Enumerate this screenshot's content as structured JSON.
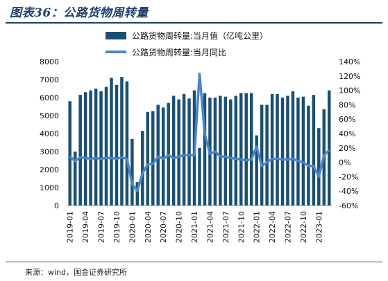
{
  "figure": {
    "title": "图表36：公路货物周转量",
    "source": "来源：wind，国金证券研究所"
  },
  "colors": {
    "bar": "#1b4f72",
    "line": "#4a86c8",
    "title": "#1f3f6b"
  },
  "chart_data": {
    "type": "bar",
    "categories": [
      "2019-01",
      "2019-02",
      "2019-03",
      "2019-04",
      "2019-05",
      "2019-06",
      "2019-07",
      "2019-08",
      "2019-09",
      "2019-10",
      "2019-11",
      "2019-12",
      "2020-01",
      "2020-02",
      "2020-03",
      "2020-04",
      "2020-05",
      "2020-06",
      "2020-07",
      "2020-08",
      "2020-09",
      "2020-10",
      "2020-11",
      "2020-12",
      "2021-01",
      "2021-02",
      "2021-03",
      "2021-04",
      "2021-05",
      "2021-06",
      "2021-07",
      "2021-08",
      "2021-09",
      "2021-10",
      "2021-11",
      "2021-12",
      "2022-01",
      "2022-02",
      "2022-03",
      "2022-04",
      "2022-05",
      "2022-06",
      "2022-07",
      "2022-08",
      "2022-09",
      "2022-10",
      "2022-11",
      "2022-12",
      "2023-01",
      "2023-02",
      "2023-03"
    ],
    "tick_labels": [
      "2019-01",
      "2019-04",
      "2019-07",
      "2019-10",
      "2020-01",
      "2020-04",
      "2020-07",
      "2020-10",
      "2021-01",
      "2021-04",
      "2021-07",
      "2021-10",
      "2022-01",
      "2022-04",
      "2022-07",
      "2022-10",
      "2023-01"
    ],
    "series": [
      {
        "name": "公路货物周转量:当月值（亿吨公里）",
        "type": "bar",
        "axis": "left",
        "values": [
          5800,
          3000,
          6150,
          6300,
          6400,
          6500,
          6350,
          6600,
          7100,
          6700,
          7150,
          6900,
          3700,
          1300,
          4150,
          5200,
          5250,
          5600,
          5450,
          5700,
          6100,
          5900,
          6200,
          5950,
          6400,
          3200,
          6250,
          6000,
          6000,
          6100,
          6050,
          5900,
          6100,
          6250,
          6250,
          6250,
          3900,
          5600,
          5600,
          6200,
          6200,
          6000,
          6100,
          6350,
          6000,
          6050,
          5550,
          6150,
          4300,
          5350,
          6400
        ]
      },
      {
        "name": "公路货物周转量:当月同比",
        "type": "line",
        "axis": "right",
        "values": [
          8,
          2,
          7,
          6,
          5,
          6,
          5,
          6,
          6,
          5,
          7,
          5,
          -30,
          -40,
          -15,
          -3,
          -2,
          8,
          5,
          10,
          6,
          8,
          10,
          10,
          10,
          123,
          40,
          12,
          15,
          8,
          8,
          6,
          5,
          4,
          3,
          4,
          22,
          -5,
          0,
          5,
          5,
          4,
          4,
          5,
          2,
          0,
          -5,
          -5,
          -20,
          10,
          17
        ]
      }
    ],
    "left_axis": {
      "ylim": [
        0,
        8000
      ],
      "ticks": [
        "0",
        "1000",
        "2000",
        "3000",
        "4000",
        "5000",
        "6000",
        "7000",
        "8000"
      ]
    },
    "right_axis": {
      "ylim": [
        -60,
        140
      ],
      "ticks": [
        "-60%",
        "-40%",
        "-20%",
        "0%",
        "20%",
        "40%",
        "60%",
        "80%",
        "100%",
        "120%",
        "140%"
      ]
    },
    "legend": "top-center",
    "grid": false
  }
}
